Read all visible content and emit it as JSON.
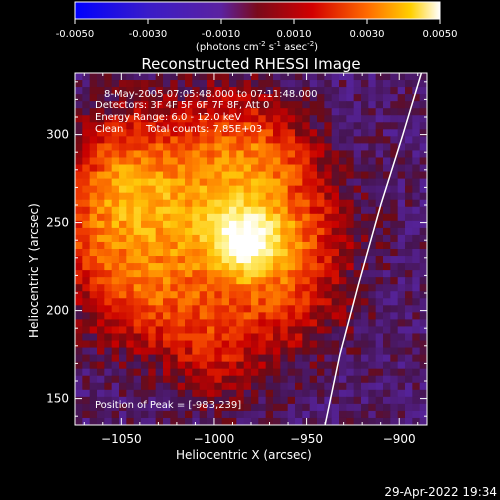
{
  "colorbar": {
    "ticks": [
      "-0.0050",
      "-0.0030",
      "-0.0010",
      "0.0010",
      "0.0030",
      "0.0050"
    ],
    "unit_parts": [
      "(photons cm",
      "-2",
      " s",
      "-1",
      " asec",
      "-2",
      ")"
    ]
  },
  "title": "Reconstructed RHESSI Image",
  "info": {
    "time_range": "8-May-2005 07:05:48.000 to 07:11:48.000",
    "detectors": "Detectors: 3F 4F 5F 6F 7F 8F, Att 0",
    "energy": "Energy Range: 6.0 - 12.0 keV",
    "method": "Clean",
    "counts": "Total counts: 7.85E+03",
    "peak": "Position of Peak = [-983,239]"
  },
  "timestamp": "29-Apr-2022 19:34",
  "chart_data": {
    "type": "heatmap",
    "xlabel": "Heliocentric X (arcsec)",
    "ylabel": "Heliocentric Y (arcsec)",
    "xlim": [
      -1075,
      -885
    ],
    "ylim": [
      135,
      335
    ],
    "x_ticks": [
      -1050,
      -1000,
      -950,
      -900
    ],
    "x_tick_labels": [
      "−1050",
      "−1000",
      "−950",
      "−900"
    ],
    "y_ticks": [
      150,
      200,
      250,
      300
    ],
    "y_tick_labels": [
      "150",
      "200",
      "250",
      "300"
    ],
    "colorbar_range": [
      -0.005,
      0.005
    ],
    "peak": [
      -983,
      239
    ],
    "limb_curve": [
      [
        -940,
        135
      ],
      [
        -932,
        175
      ],
      [
        -922,
        215
      ],
      [
        -910,
        260
      ],
      [
        -898,
        300
      ],
      [
        -888,
        335
      ]
    ],
    "grid": false,
    "grid_cols": 48,
    "grid_rows": 50,
    "blobs": [
      {
        "x": -983,
        "y": 239,
        "s": 14,
        "a": 0.0035
      },
      {
        "x": -1000,
        "y": 262,
        "s": 26,
        "a": 0.002
      },
      {
        "x": -1030,
        "y": 232,
        "s": 30,
        "a": 0.0018
      },
      {
        "x": -1055,
        "y": 262,
        "s": 22,
        "a": 0.0018
      },
      {
        "x": -1045,
        "y": 290,
        "s": 22,
        "a": 0.0015
      },
      {
        "x": -990,
        "y": 300,
        "s": 22,
        "a": 0.0015
      },
      {
        "x": -955,
        "y": 245,
        "s": 22,
        "a": 0.0018
      },
      {
        "x": -960,
        "y": 205,
        "s": 22,
        "a": 0.0015
      },
      {
        "x": -1000,
        "y": 190,
        "s": 22,
        "a": 0.0014
      },
      {
        "x": -1045,
        "y": 205,
        "s": 20,
        "a": 0.0012
      },
      {
        "x": -965,
        "y": 285,
        "s": 18,
        "a": 0.0012
      },
      {
        "x": -1000,
        "y": 162,
        "s": 16,
        "a": 0.0006
      },
      {
        "x": -1072,
        "y": 232,
        "s": 14,
        "a": 0.0008
      }
    ]
  }
}
